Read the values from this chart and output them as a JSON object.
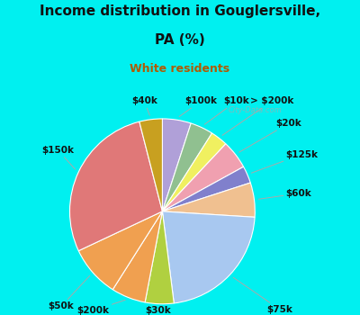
{
  "title_line1": "Income distribution in Gouglersville,",
  "title_line2": "PA (%)",
  "subtitle": "White residents",
  "title_color": "#111111",
  "subtitle_color": "#b05a00",
  "bg_outer": "#00f0f0",
  "bg_inner_color": "#d8edd8",
  "watermark": "City-Data.com",
  "labels": [
    "$100k",
    "$10k",
    "> $200k",
    "$20k",
    "$125k",
    "$60k",
    "$75k",
    "$30k",
    "$200k",
    "$50k",
    "$150k",
    "$40k"
  ],
  "values": [
    5,
    4,
    3,
    5,
    3,
    6,
    22,
    5,
    6,
    9,
    28,
    4
  ],
  "colors": [
    "#b0a0d8",
    "#90c090",
    "#f0f060",
    "#f0a0b0",
    "#8080cc",
    "#f0c090",
    "#a8c8f0",
    "#b0d040",
    "#f0a050",
    "#f0a050",
    "#e07878",
    "#c8a020"
  ],
  "start_angle": 90,
  "counterclock": false,
  "label_fontsize": 7.5,
  "title_fontsize": 11,
  "subtitle_fontsize": 9
}
